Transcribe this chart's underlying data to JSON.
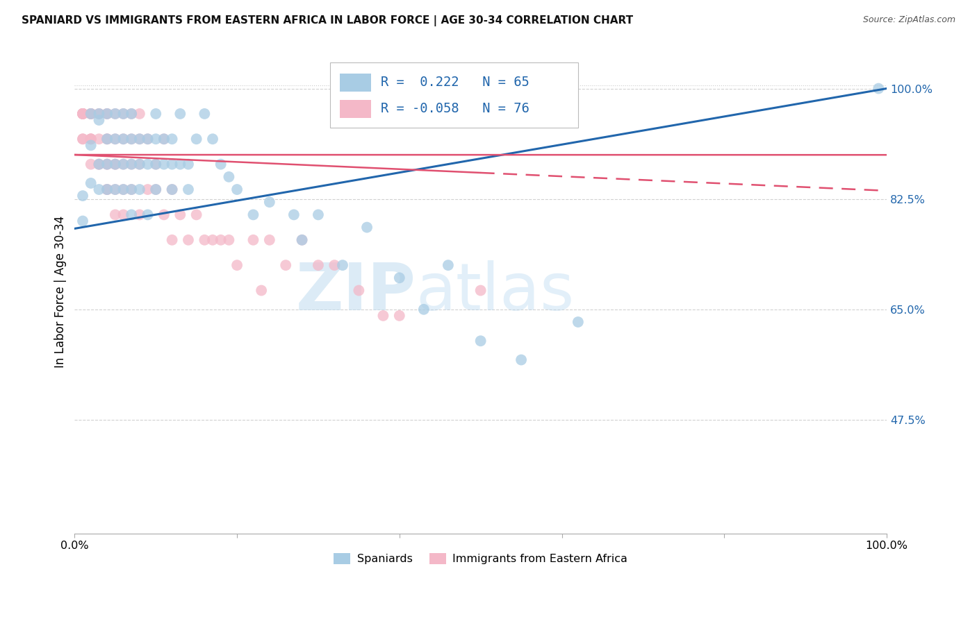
{
  "title": "SPANIARD VS IMMIGRANTS FROM EASTERN AFRICA IN LABOR FORCE | AGE 30-34 CORRELATION CHART",
  "source": "Source: ZipAtlas.com",
  "ylabel": "In Labor Force | Age 30-34",
  "xlim": [
    0.0,
    1.0
  ],
  "ylim": [
    0.295,
    1.06
  ],
  "yticks": [
    0.475,
    0.65,
    0.825,
    1.0
  ],
  "ytick_labels": [
    "47.5%",
    "65.0%",
    "82.5%",
    "100.0%"
  ],
  "xticks": [
    0.0,
    0.2,
    0.4,
    0.6,
    0.8,
    1.0
  ],
  "xtick_labels": [
    "0.0%",
    "",
    "",
    "",
    "",
    "100.0%"
  ],
  "legend_blue_r": "R =  0.222",
  "legend_blue_n": "N = 65",
  "legend_pink_r": "R = -0.058",
  "legend_pink_n": "N = 76",
  "blue_color": "#a8cce4",
  "pink_color": "#f4b8c8",
  "blue_line_color": "#2166ac",
  "pink_line_color": "#e05070",
  "grid_color": "#cccccc",
  "watermark_zip": "ZIP",
  "watermark_atlas": "atlas",
  "blue_scatter_x": [
    0.01,
    0.01,
    0.02,
    0.02,
    0.02,
    0.03,
    0.03,
    0.03,
    0.03,
    0.04,
    0.04,
    0.04,
    0.04,
    0.05,
    0.05,
    0.05,
    0.05,
    0.06,
    0.06,
    0.06,
    0.06,
    0.07,
    0.07,
    0.07,
    0.07,
    0.07,
    0.08,
    0.08,
    0.08,
    0.09,
    0.09,
    0.09,
    0.1,
    0.1,
    0.1,
    0.1,
    0.11,
    0.11,
    0.12,
    0.12,
    0.12,
    0.13,
    0.13,
    0.14,
    0.14,
    0.15,
    0.16,
    0.17,
    0.18,
    0.19,
    0.2,
    0.22,
    0.24,
    0.27,
    0.28,
    0.3,
    0.33,
    0.36,
    0.4,
    0.43,
    0.46,
    0.5,
    0.55,
    0.62,
    0.99
  ],
  "blue_scatter_y": [
    0.79,
    0.83,
    0.91,
    0.85,
    0.96,
    0.95,
    0.88,
    0.84,
    0.96,
    0.88,
    0.84,
    0.96,
    0.92,
    0.96,
    0.92,
    0.88,
    0.84,
    0.84,
    0.88,
    0.92,
    0.96,
    0.88,
    0.84,
    0.92,
    0.96,
    0.8,
    0.84,
    0.88,
    0.92,
    0.8,
    0.88,
    0.92,
    0.84,
    0.88,
    0.92,
    0.96,
    0.92,
    0.88,
    0.88,
    0.84,
    0.92,
    0.88,
    0.96,
    0.84,
    0.88,
    0.92,
    0.96,
    0.92,
    0.88,
    0.86,
    0.84,
    0.8,
    0.82,
    0.8,
    0.76,
    0.8,
    0.72,
    0.78,
    0.7,
    0.65,
    0.72,
    0.6,
    0.57,
    0.63,
    1.0
  ],
  "pink_scatter_x": [
    0.01,
    0.01,
    0.01,
    0.01,
    0.01,
    0.01,
    0.01,
    0.01,
    0.01,
    0.02,
    0.02,
    0.02,
    0.02,
    0.02,
    0.02,
    0.02,
    0.02,
    0.03,
    0.03,
    0.03,
    0.03,
    0.03,
    0.04,
    0.04,
    0.04,
    0.04,
    0.04,
    0.04,
    0.04,
    0.04,
    0.05,
    0.05,
    0.05,
    0.05,
    0.05,
    0.05,
    0.06,
    0.06,
    0.06,
    0.06,
    0.06,
    0.07,
    0.07,
    0.07,
    0.07,
    0.08,
    0.08,
    0.08,
    0.08,
    0.09,
    0.09,
    0.1,
    0.1,
    0.11,
    0.11,
    0.12,
    0.12,
    0.13,
    0.14,
    0.15,
    0.16,
    0.17,
    0.18,
    0.19,
    0.2,
    0.22,
    0.23,
    0.24,
    0.26,
    0.28,
    0.3,
    0.32,
    0.35,
    0.38,
    0.4,
    0.5
  ],
  "pink_scatter_y": [
    0.96,
    0.96,
    0.96,
    0.96,
    0.96,
    0.96,
    0.96,
    0.92,
    0.92,
    0.96,
    0.96,
    0.96,
    0.96,
    0.92,
    0.92,
    0.92,
    0.88,
    0.96,
    0.96,
    0.92,
    0.88,
    0.88,
    0.96,
    0.96,
    0.92,
    0.92,
    0.88,
    0.88,
    0.84,
    0.84,
    0.96,
    0.92,
    0.88,
    0.88,
    0.84,
    0.8,
    0.96,
    0.92,
    0.88,
    0.84,
    0.8,
    0.96,
    0.92,
    0.88,
    0.84,
    0.96,
    0.92,
    0.88,
    0.8,
    0.92,
    0.84,
    0.88,
    0.84,
    0.92,
    0.8,
    0.84,
    0.76,
    0.8,
    0.76,
    0.8,
    0.76,
    0.76,
    0.76,
    0.76,
    0.72,
    0.76,
    0.68,
    0.76,
    0.72,
    0.76,
    0.72,
    0.72,
    0.68,
    0.64,
    0.64,
    0.68
  ],
  "blue_trend_x": [
    0.0,
    1.0
  ],
  "blue_trend_y": [
    0.778,
    1.0
  ],
  "pink_trend_x": [
    0.0,
    1.0
  ],
  "pink_trend_y": [
    0.895,
    0.838
  ],
  "pink_trend_dashes": [
    10,
    6
  ]
}
